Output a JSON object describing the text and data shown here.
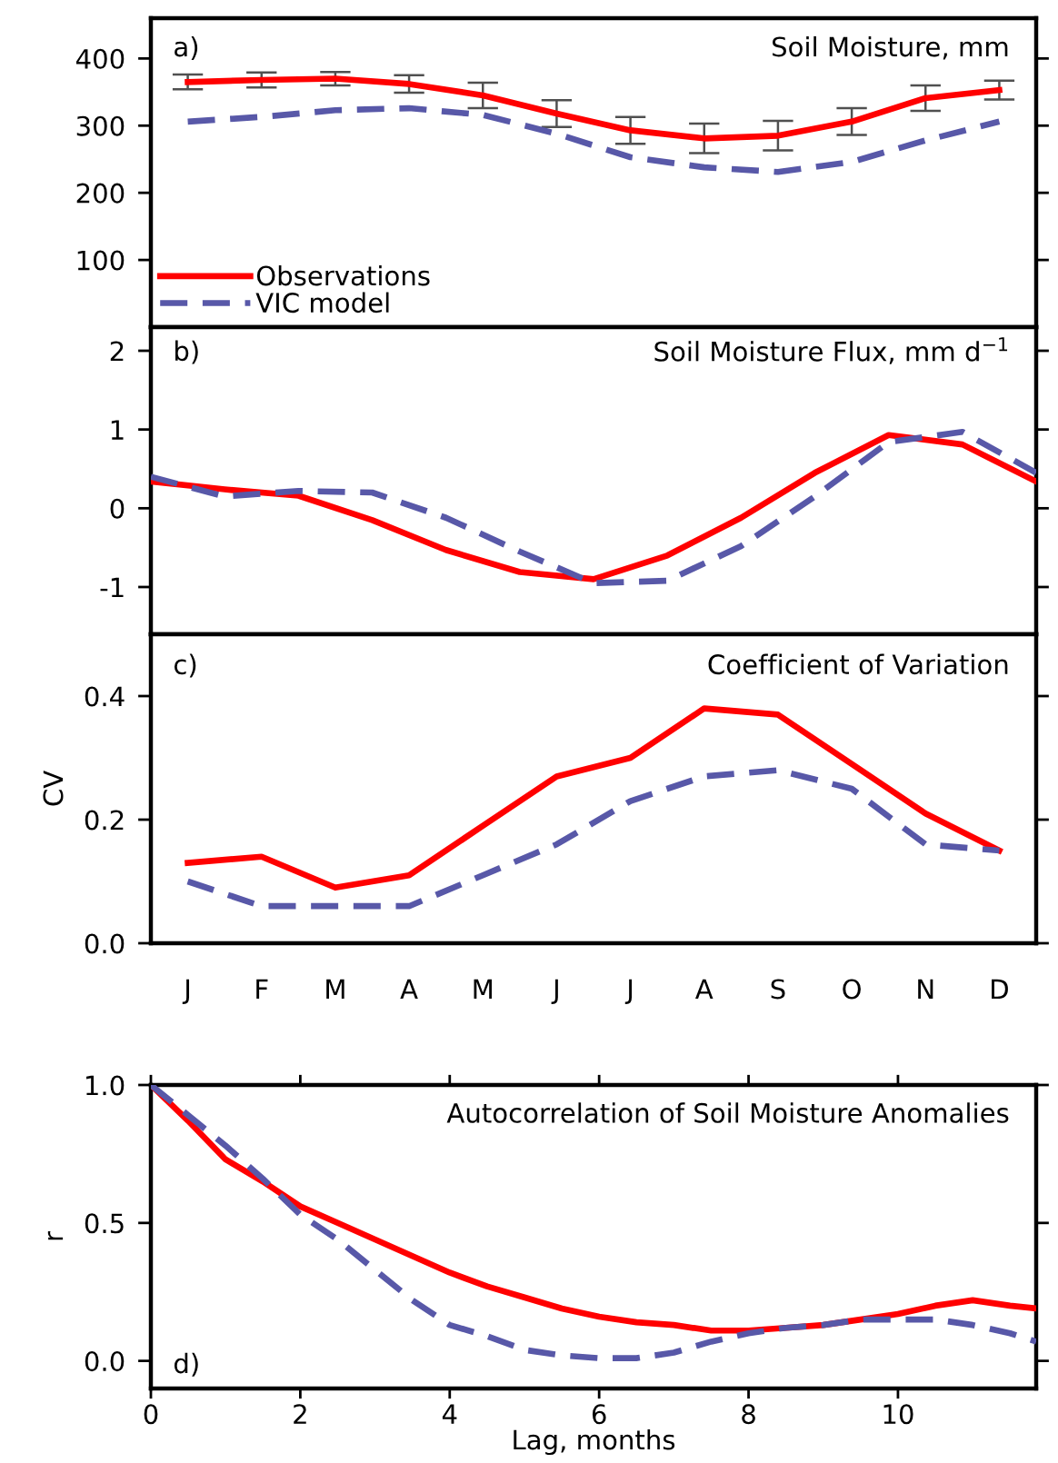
{
  "chart_data": [
    {
      "type": "line",
      "title": "Soil Moisture, mm",
      "annotations": [
        "a)"
      ],
      "categories": [
        null,
        null,
        null,
        null,
        null,
        null,
        null,
        null,
        null,
        null,
        null,
        null
      ],
      "ylim": [
        0,
        460
      ],
      "yticks": [
        100,
        200,
        300,
        400
      ],
      "tick_labels": "y",
      "legend": "bottom left",
      "series": [
        {
          "name": "Observations",
          "color": "#ff0000",
          "line_style": "solid",
          "values": [
            365,
            368,
            370,
            362,
            345,
            318,
            293,
            281,
            285,
            306,
            341,
            353
          ],
          "errors": [
            11,
            11,
            10,
            13,
            19,
            20,
            20,
            22,
            22,
            20,
            19,
            14
          ]
        },
        {
          "name": "VIC model",
          "color": "#5858a8",
          "line_style": "dashed",
          "values": [
            306,
            313,
            323,
            326,
            316,
            288,
            253,
            238,
            231,
            246,
            278,
            306
          ]
        }
      ]
    },
    {
      "type": "line",
      "title": "Soil Moisture Flux, mm d$^{−1}$",
      "annotations": [
        "b)"
      ],
      "categories": [
        null,
        null,
        null,
        null,
        null,
        null,
        null,
        null,
        null,
        null,
        null,
        null,
        null
      ],
      "ylim": [
        -1.6,
        2.3
      ],
      "yticks": [
        -1,
        0,
        1,
        2
      ],
      "tick_labels": "y",
      "series": [
        {
          "color": "#ff0000",
          "line_style": "solid",
          "values": [
            0.34,
            0.24,
            0.16,
            -0.15,
            -0.53,
            -0.81,
            -0.9,
            -0.6,
            -0.12,
            0.45,
            0.93,
            0.81,
            0.34
          ]
        },
        {
          "color": "#5858a8",
          "line_style": "dashed",
          "values": [
            0.4,
            0.15,
            0.22,
            0.2,
            -0.12,
            -0.55,
            -0.95,
            -0.92,
            -0.48,
            0.15,
            0.84,
            0.97,
            0.45
          ]
        }
      ]
    },
    {
      "type": "line",
      "title": "Coefficient of Variation",
      "ylabel": "CV",
      "annotations": [
        "c)"
      ],
      "categories": [
        "J",
        "F",
        "M",
        "A",
        "M",
        "J",
        "J",
        "A",
        "S",
        "O",
        "N",
        "D"
      ],
      "ylim": [
        0,
        0.5
      ],
      "yticks": [
        {
          "value": 0,
          "label": "0.0"
        },
        {
          "value": 0.2,
          "label": "0.2"
        },
        {
          "value": 0.4,
          "label": "0.4"
        }
      ],
      "series": [
        {
          "color": "#ff0000",
          "line_style": "solid",
          "values": [
            0.13,
            0.14,
            0.09,
            0.11,
            0.19,
            0.27,
            0.3,
            0.38,
            0.37,
            0.29,
            0.21,
            0.15
          ]
        },
        {
          "color": "#5858a8",
          "line_style": "dashed",
          "values": [
            0.1,
            0.06,
            0.06,
            0.06,
            0.11,
            0.16,
            0.23,
            0.27,
            0.28,
            0.25,
            0.16,
            0.15
          ]
        }
      ]
    },
    {
      "type": "line",
      "title": "Autocorrelation of Soil Moisture Anomalies",
      "ylabel": "r",
      "xlabel": "Lag, months",
      "annotations": [
        "d)"
      ],
      "x": [
        0,
        0.5,
        1,
        1.5,
        2,
        2.5,
        3,
        3.5,
        4,
        4.5,
        5,
        5.5,
        6,
        6.5,
        7,
        7.5,
        8,
        8.5,
        9,
        9.5,
        10,
        10.5,
        11,
        11.5,
        11.85
      ],
      "xlim": [
        0,
        11.85
      ],
      "xticks": [
        0,
        2,
        4,
        6,
        8,
        10
      ],
      "ylim": [
        -0.1,
        1.0
      ],
      "yticks": [
        {
          "value": 0,
          "label": "0.0"
        },
        {
          "value": 0.5,
          "label": "0.5"
        },
        {
          "value": 1,
          "label": "1.0"
        }
      ],
      "series": [
        {
          "color": "#ff0000",
          "line_style": "solid",
          "values": [
            1.0,
            0.87,
            0.73,
            0.65,
            0.56,
            0.5,
            0.44,
            0.38,
            0.32,
            0.27,
            0.23,
            0.19,
            0.16,
            0.14,
            0.13,
            0.11,
            0.11,
            0.12,
            0.13,
            0.15,
            0.17,
            0.2,
            0.22,
            0.2,
            0.19
          ]
        },
        {
          "color": "#5858a8",
          "line_style": "dashed",
          "values": [
            1.0,
            0.89,
            0.78,
            0.66,
            0.53,
            0.44,
            0.33,
            0.22,
            0.13,
            0.09,
            0.04,
            0.02,
            0.01,
            0.01,
            0.03,
            0.07,
            0.1,
            0.12,
            0.13,
            0.15,
            0.15,
            0.15,
            0.13,
            0.1,
            0.07
          ]
        }
      ]
    }
  ]
}
